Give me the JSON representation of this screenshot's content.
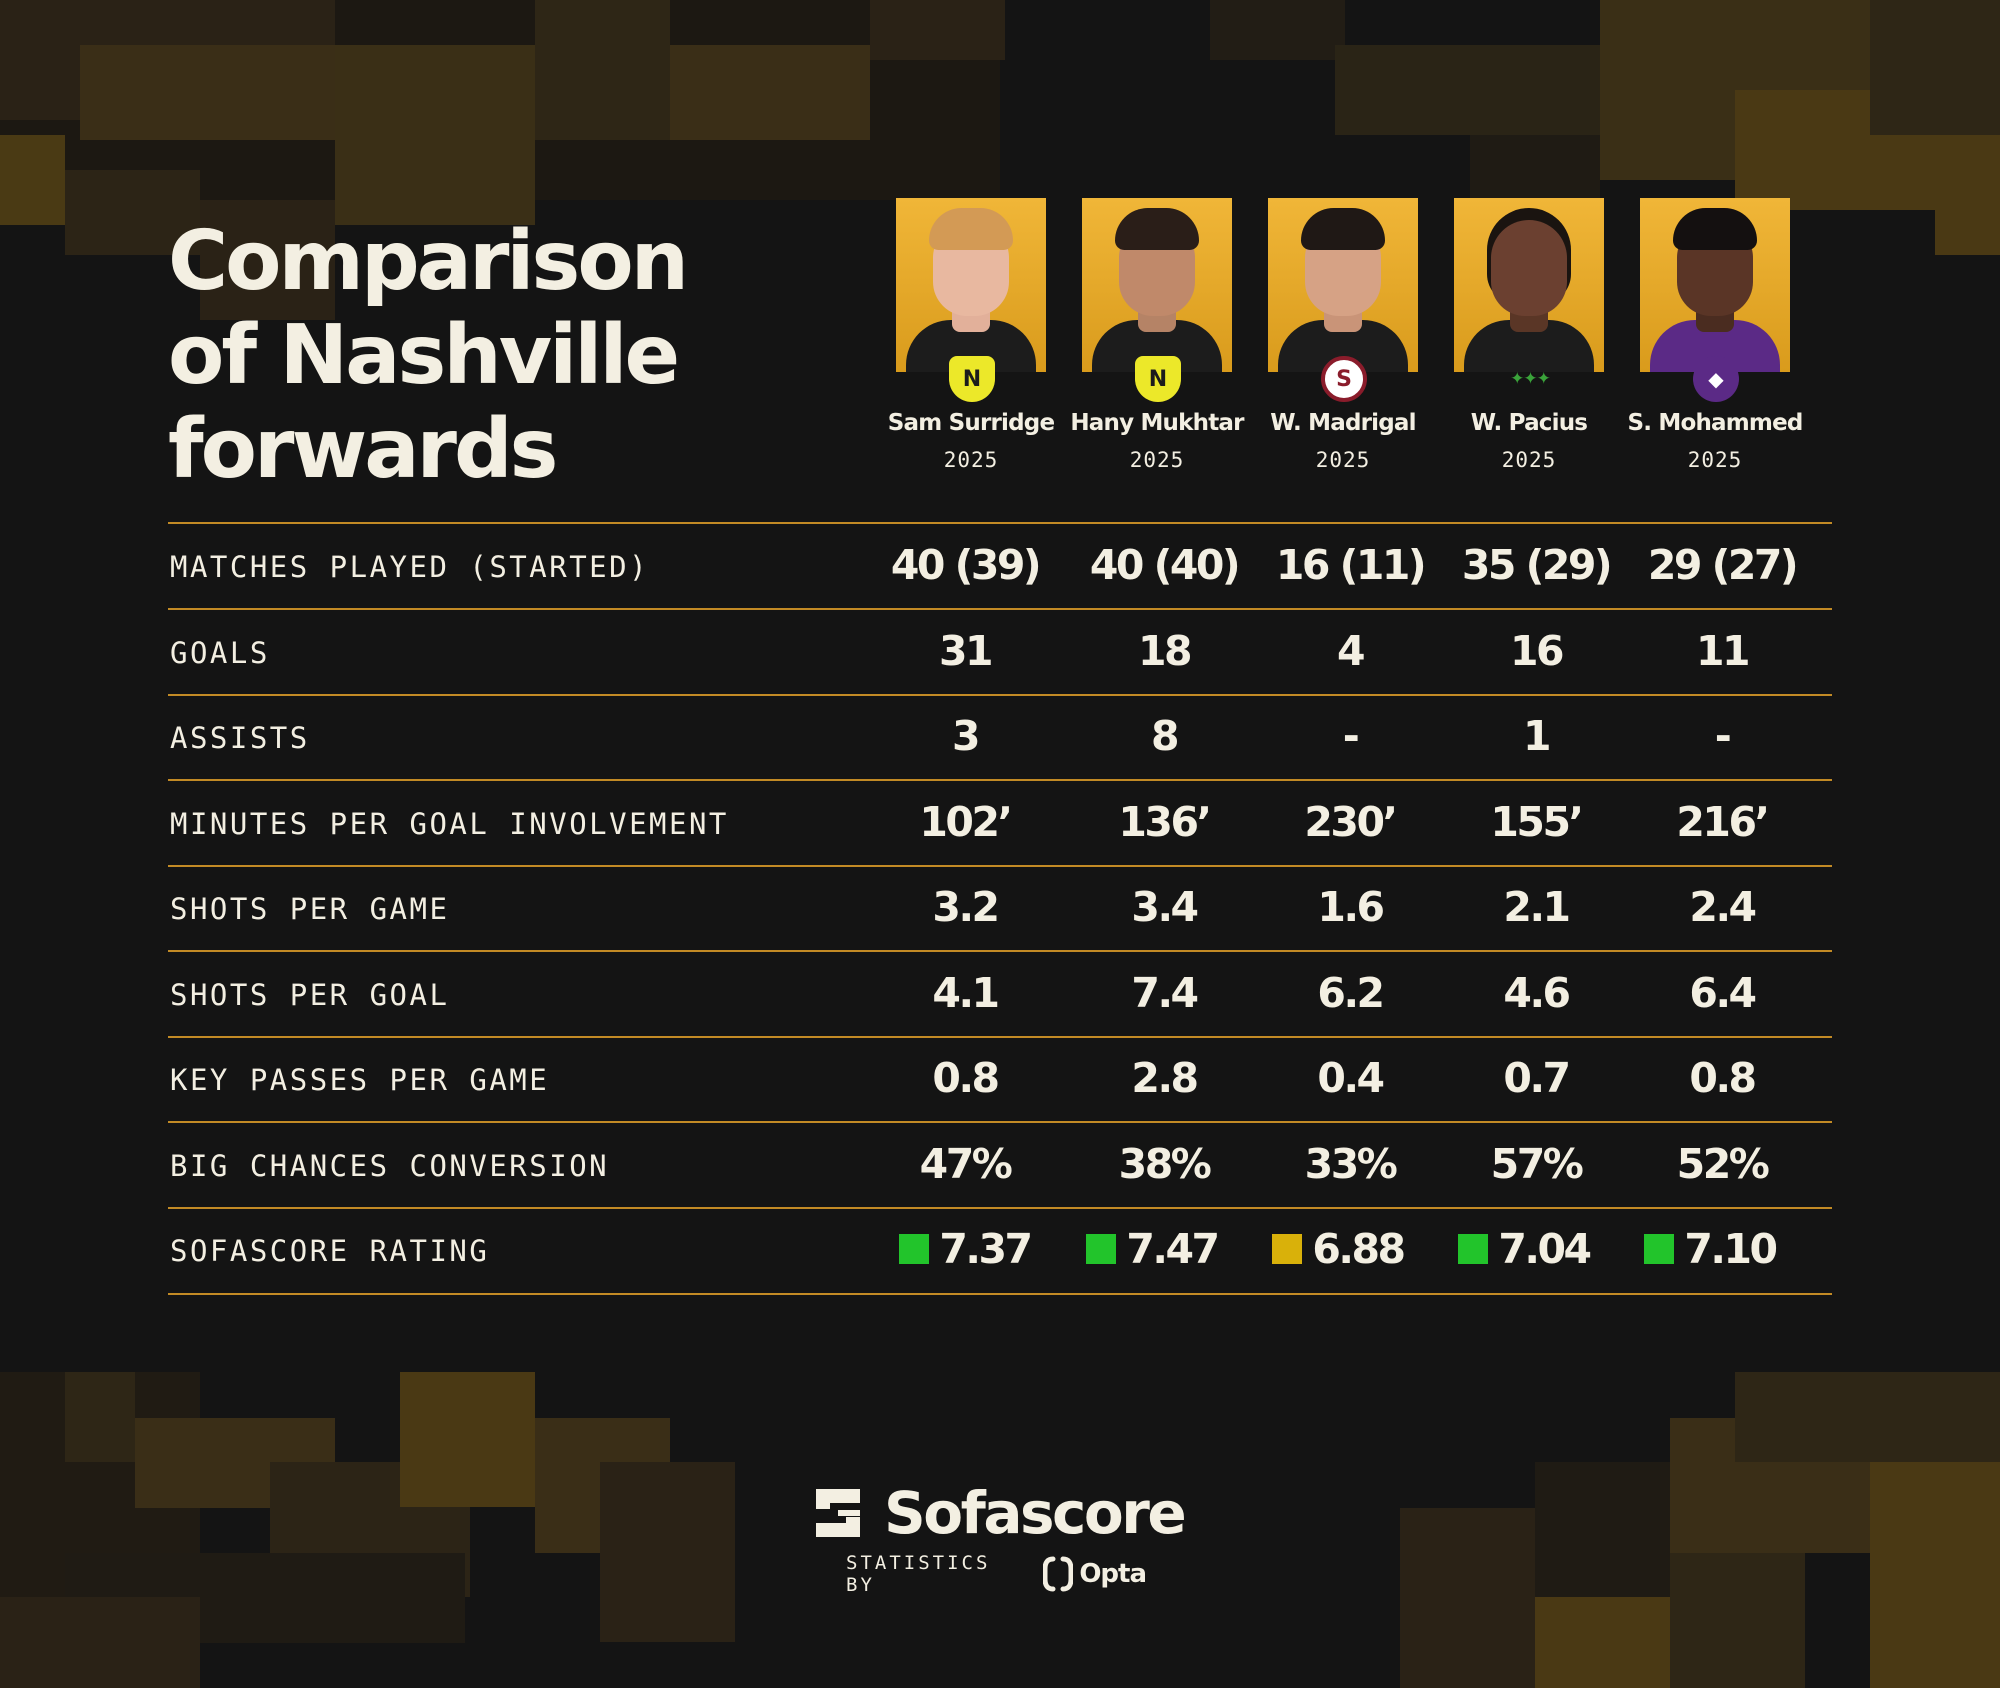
{
  "title_lines": [
    "Comparison",
    "of Nashville",
    "forwards"
  ],
  "players": [
    {
      "name": "Sam Surridge",
      "season": "2025",
      "club_badge": "nashville-sc-crest"
    },
    {
      "name": "Hany Mukhtar",
      "season": "2025",
      "club_badge": "nashville-sc-crest"
    },
    {
      "name": "W. Madrigal",
      "season": "2025",
      "club_badge": "saprissa-crest",
      "badge_letter": "S"
    },
    {
      "name": "W. Pacius",
      "season": "2025",
      "club_badge": "tampa-bay-rowdies-crest"
    },
    {
      "name": "S. Mohammed",
      "season": "2025",
      "club_badge": "orlando-city-crest"
    }
  ],
  "stats": [
    {
      "label": "MATCHES PLAYED (STARTED)",
      "values": [
        "40 (39)",
        "40 (40)",
        "16 (11)",
        "35 (29)",
        "29 (27)"
      ]
    },
    {
      "label": "GOALS",
      "values": [
        "31",
        "18",
        "4",
        "16",
        "11"
      ]
    },
    {
      "label": "ASSISTS",
      "values": [
        "3",
        "8",
        "-",
        "1",
        "-"
      ]
    },
    {
      "label": "MINUTES PER GOAL INVOLVEMENT",
      "values": [
        "102’",
        "136’",
        "230’",
        "155’",
        "216’"
      ]
    },
    {
      "label": "SHOTS PER GAME",
      "values": [
        "3.2",
        "3.4",
        "1.6",
        "2.1",
        "2.4"
      ]
    },
    {
      "label": "SHOTS PER GOAL",
      "values": [
        "4.1",
        "7.4",
        "6.2",
        "4.6",
        "6.4"
      ]
    },
    {
      "label": "KEY PASSES PER GAME",
      "values": [
        "0.8",
        "2.8",
        "0.4",
        "0.7",
        "0.8"
      ]
    },
    {
      "label": "BIG CHANCES CONVERSION",
      "values": [
        "47%",
        "38%",
        "33%",
        "57%",
        "52%"
      ]
    }
  ],
  "rating": {
    "label": "SOFASCORE RATING",
    "values": [
      {
        "value": "7.37",
        "color": "#22c42b"
      },
      {
        "value": "7.47",
        "color": "#22c42b"
      },
      {
        "value": "6.88",
        "color": "#d9b10a"
      },
      {
        "value": "7.04",
        "color": "#22c42b"
      },
      {
        "value": "7.10",
        "color": "#22c42b"
      }
    ]
  },
  "brand": {
    "name": "Sofascore",
    "credit_prefix": "STATISTICS BY",
    "credit_name": "Opta"
  },
  "colors": {
    "background": "#141414",
    "accent": "#c28a25",
    "text": "#f3efe2",
    "rating_green": "#22c42b",
    "rating_yellow": "#d9b10a"
  }
}
